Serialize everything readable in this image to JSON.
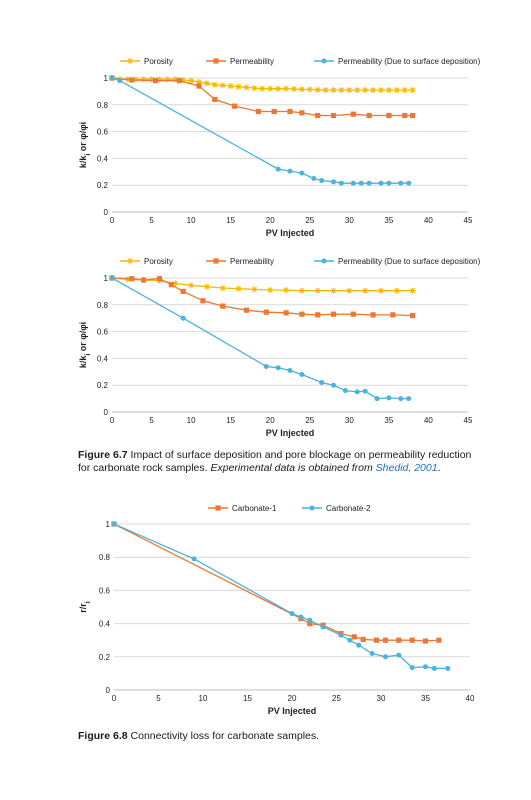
{
  "colors": {
    "porosity": "#f5b800",
    "permeability": "#ee7733",
    "deposition": "#4ab3e0",
    "carbonate1": "#ee7733",
    "carbonate2": "#4ab3e0",
    "grid": "#d9d9d9",
    "axis": "#bfbfbf",
    "link": "#1f6fb5"
  },
  "figure_6_7": {
    "caption_label": "Figure 6.7",
    "caption_text": "Impact of surface deposition and pore blockage on permeability reduction for carbonate rock samples.",
    "caption_italic": "Experimental data is obtained from",
    "caption_source": "Shedid, 2001",
    "caption_end": "."
  },
  "figure_6_8": {
    "caption_label": "Figure 6.8",
    "caption_text": "Connectivity loss for carbonate samples."
  },
  "chart_data": [
    {
      "type": "line",
      "xlabel": "PV Injected",
      "ylabel": "k/k_i or φ/φi",
      "xlim": [
        0,
        45
      ],
      "ylim": [
        0,
        1
      ],
      "xticks": [
        0,
        5,
        10,
        15,
        20,
        25,
        30,
        35,
        40,
        45
      ],
      "yticks": [
        0,
        0.2,
        0.4,
        0.6,
        0.8,
        1
      ],
      "ytick_labels": [
        "0",
        "0.2",
        "0.4",
        "0.6",
        "0.8",
        "1"
      ],
      "grid": "horizontal",
      "legend_position": "top",
      "series": [
        {
          "name": "Porosity",
          "marker": "star",
          "color": "#f5b800",
          "x": [
            0,
            1,
            2,
            3,
            4,
            5,
            6,
            7,
            8,
            9,
            10,
            11,
            12,
            13,
            14,
            15,
            16,
            17,
            18,
            19,
            20,
            21,
            22,
            23,
            24,
            25,
            26,
            27,
            28,
            29,
            30,
            31,
            32,
            33,
            34,
            35,
            36,
            37,
            38
          ],
          "y": [
            1.0,
            0.99,
            0.99,
            0.99,
            0.99,
            0.99,
            0.99,
            0.99,
            0.99,
            0.985,
            0.98,
            0.97,
            0.96,
            0.95,
            0.945,
            0.94,
            0.935,
            0.93,
            0.925,
            0.92,
            0.92,
            0.92,
            0.92,
            0.918,
            0.915,
            0.915,
            0.912,
            0.91,
            0.91,
            0.91,
            0.91,
            0.91,
            0.91,
            0.91,
            0.91,
            0.91,
            0.91,
            0.91,
            0.91
          ]
        },
        {
          "name": "Permeability",
          "marker": "square",
          "color": "#ee7733",
          "x": [
            0,
            2.5,
            5.5,
            8.5,
            11,
            13,
            15.5,
            18.5,
            20.5,
            22.5,
            24,
            26,
            28,
            30.5,
            32.5,
            35,
            37,
            38
          ],
          "y": [
            1.0,
            0.985,
            0.98,
            0.98,
            0.94,
            0.84,
            0.79,
            0.75,
            0.75,
            0.75,
            0.74,
            0.72,
            0.72,
            0.73,
            0.72,
            0.72,
            0.72,
            0.72
          ]
        },
        {
          "name": "Permeability (Due to surface deposition)",
          "marker": "circle",
          "color": "#4ab3e0",
          "x": [
            0,
            1,
            21,
            22.5,
            24,
            25.5,
            26.5,
            28,
            29,
            30.5,
            31.5,
            32.5,
            34,
            35,
            36.5,
            37.5
          ],
          "y": [
            1.0,
            0.98,
            0.32,
            0.305,
            0.29,
            0.25,
            0.235,
            0.225,
            0.215,
            0.215,
            0.215,
            0.215,
            0.215,
            0.215,
            0.215,
            0.215
          ]
        }
      ]
    },
    {
      "type": "line",
      "xlabel": "PV Injected",
      "ylabel": "k/k_i or φ/φi",
      "xlim": [
        0,
        45
      ],
      "ylim": [
        0,
        1
      ],
      "xticks": [
        0,
        5,
        10,
        15,
        20,
        25,
        30,
        35,
        40,
        45
      ],
      "yticks": [
        0,
        0.2,
        0.4,
        0.6,
        0.8,
        1
      ],
      "ytick_labels": [
        "0",
        "0.2",
        "0.4",
        "0.6",
        "0.8",
        "1"
      ],
      "grid": "horizontal",
      "legend_position": "top",
      "series": [
        {
          "name": "Porosity",
          "marker": "star",
          "color": "#f5b800",
          "x": [
            0,
            2,
            4,
            6,
            8,
            10,
            12,
            14,
            16,
            18,
            20,
            22,
            24,
            26,
            28,
            30,
            32,
            34,
            36,
            38
          ],
          "y": [
            1.0,
            0.99,
            0.985,
            0.98,
            0.96,
            0.945,
            0.935,
            0.925,
            0.92,
            0.915,
            0.91,
            0.91,
            0.905,
            0.905,
            0.905,
            0.905,
            0.905,
            0.905,
            0.905,
            0.905
          ]
        },
        {
          "name": "Permeability",
          "marker": "square",
          "color": "#ee7733",
          "x": [
            0,
            2.5,
            4,
            6,
            7.5,
            9,
            11.5,
            14,
            17,
            19.5,
            22,
            24,
            26,
            28,
            30.5,
            33,
            35.5,
            38
          ],
          "y": [
            1.0,
            0.995,
            0.985,
            0.995,
            0.95,
            0.9,
            0.83,
            0.79,
            0.76,
            0.745,
            0.74,
            0.73,
            0.725,
            0.73,
            0.73,
            0.725,
            0.725,
            0.72
          ]
        },
        {
          "name": "Permeability (Due to surface deposition)",
          "marker": "circle",
          "color": "#4ab3e0",
          "x": [
            0,
            9,
            19.5,
            21,
            22.5,
            24,
            26.5,
            28,
            29.5,
            31,
            32,
            33.5,
            35,
            36.5,
            37.5
          ],
          "y": [
            1.0,
            0.7,
            0.34,
            0.33,
            0.31,
            0.28,
            0.22,
            0.2,
            0.16,
            0.15,
            0.155,
            0.1,
            0.105,
            0.1,
            0.1
          ]
        }
      ]
    },
    {
      "type": "line",
      "xlabel": "PV Injected",
      "ylabel": "r/r_i",
      "xlim": [
        0,
        40
      ],
      "ylim": [
        0,
        1
      ],
      "xticks": [
        0,
        5,
        10,
        15,
        20,
        25,
        30,
        35,
        40
      ],
      "yticks": [
        0,
        0.2,
        0.4,
        0.6,
        0.8,
        1
      ],
      "ytick_labels": [
        "0",
        "0.2",
        "0.4",
        "0.6",
        "0.8",
        "1"
      ],
      "grid": "horizontal",
      "legend_position": "top",
      "series": [
        {
          "name": "Carbonate-1",
          "marker": "square",
          "color": "#ee7733",
          "x": [
            0,
            21,
            22,
            23.5,
            25.5,
            27,
            28,
            29.5,
            30.5,
            32,
            33.5,
            35,
            36.5
          ],
          "y": [
            1.0,
            0.43,
            0.4,
            0.39,
            0.34,
            0.32,
            0.305,
            0.3,
            0.3,
            0.3,
            0.3,
            0.295,
            0.3
          ]
        },
        {
          "name": "Carbonate-2",
          "marker": "circle",
          "color": "#4ab3e0",
          "x": [
            0,
            9,
            20,
            21,
            22,
            23.5,
            25.5,
            26.5,
            27.5,
            29,
            30.5,
            32,
            33.5,
            35,
            36,
            37.5
          ],
          "y": [
            1.0,
            0.79,
            0.46,
            0.44,
            0.42,
            0.38,
            0.33,
            0.3,
            0.27,
            0.22,
            0.2,
            0.21,
            0.135,
            0.14,
            0.13,
            0.13
          ]
        }
      ]
    }
  ]
}
